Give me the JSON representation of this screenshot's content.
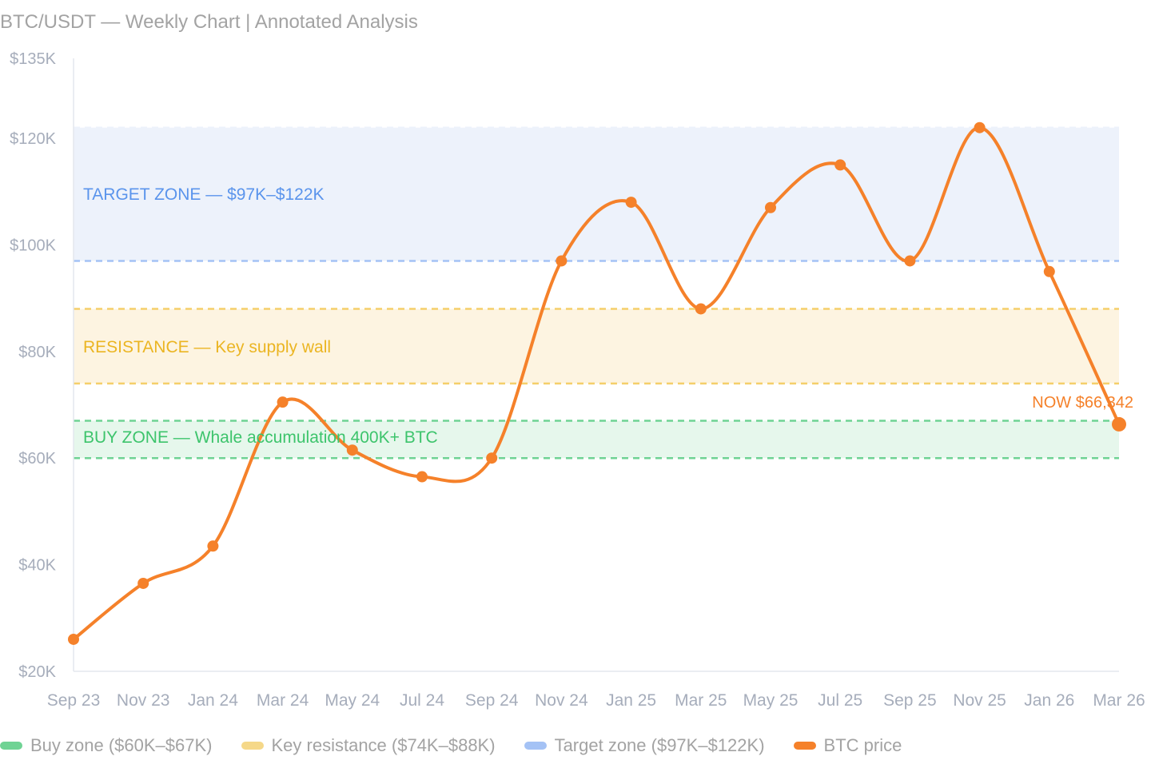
{
  "title": "BTC/USDT — Weekly Chart | Annotated Analysis",
  "chart_data": {
    "type": "line",
    "title": "BTC/USDT — Weekly Chart | Annotated Analysis",
    "xlabel": "",
    "ylabel": "",
    "ylim": [
      20000,
      135000
    ],
    "y_ticks": [
      20000,
      40000,
      60000,
      80000,
      100000,
      120000,
      135000
    ],
    "y_tick_labels": [
      "$20K",
      "$40K",
      "$60K",
      "$80K",
      "$100K",
      "$120K",
      "$135K"
    ],
    "grid": false,
    "legend_position": "bottom-left",
    "categories": [
      "Sep 23",
      "Nov 23",
      "Jan 24",
      "Mar 24",
      "May 24",
      "Jul 24",
      "Sep 24",
      "Nov 24",
      "Jan 25",
      "Mar 25",
      "May 25",
      "Jul 25",
      "Sep 25",
      "Nov 25",
      "Jan 26",
      "Mar 26"
    ],
    "series": [
      {
        "name": "BTC price",
        "color": "#f5812a",
        "values": [
          26000,
          36500,
          43500,
          70500,
          61500,
          56500,
          60000,
          97000,
          108000,
          88000,
          107000,
          115000,
          97000,
          122000,
          95000,
          66342
        ]
      }
    ],
    "bands": [
      {
        "name": "Buy zone ($60K–$67K)",
        "label": "BUY ZONE — Whale accumulation 400K+ BTC",
        "low": 60000,
        "high": 67000,
        "fill": "#e6f7ec",
        "line": "#6fd394",
        "text": "#3dc46c"
      },
      {
        "name": "Key resistance ($74K–$88K)",
        "label": "RESISTANCE — Key supply wall",
        "low": 74000,
        "high": 88000,
        "fill": "#fdf4e1",
        "line": "#f5cf6a",
        "text": "#ebb522"
      },
      {
        "name": "Target zone ($97K–$122K)",
        "label": "TARGET ZONE — $97K–$122K",
        "low": 97000,
        "high": 122000,
        "fill": "#edf2fb",
        "line": "#a4c2f5",
        "text": "#5a94ec"
      }
    ],
    "annotations": [
      {
        "text": "NOW $66,342",
        "x": "Mar 26",
        "y": 66342,
        "color": "#f5812a"
      }
    ]
  },
  "legend": [
    {
      "label": "Buy zone ($60K–$67K)",
      "color": "#6fd394"
    },
    {
      "label": "Key resistance ($74K–$88K)",
      "color": "#f5d889"
    },
    {
      "label": "Target zone ($97K–$122K)",
      "color": "#a4c2f5"
    },
    {
      "label": "BTC price",
      "color": "#f5812a"
    }
  ]
}
